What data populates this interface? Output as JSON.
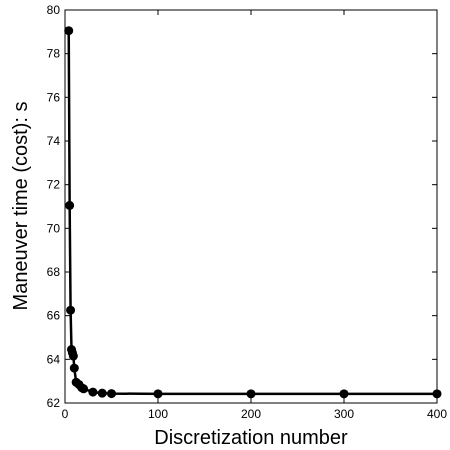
{
  "chart_data": {
    "type": "line",
    "title": "",
    "xlabel": "Discretization number",
    "ylabel": "Maneuver time (cost): s",
    "xlim": [
      0,
      400
    ],
    "ylim": [
      62,
      80
    ],
    "xticks": [
      0,
      100,
      200,
      300,
      400
    ],
    "yticks": [
      62,
      64,
      66,
      68,
      70,
      72,
      74,
      76,
      78,
      80
    ],
    "grid": false,
    "legend": "none",
    "series": [
      {
        "color": "#000000",
        "marker": "filled-circle",
        "x": [
          4,
          5,
          6,
          7,
          8,
          9,
          10,
          12,
          15,
          18,
          20,
          30,
          40,
          50,
          100,
          200,
          300,
          400
        ],
        "y": [
          79.05,
          71.05,
          66.25,
          64.45,
          64.3,
          64.15,
          63.6,
          62.95,
          62.85,
          62.7,
          62.65,
          62.5,
          62.45,
          62.43,
          62.42,
          62.42,
          62.42,
          62.42
        ]
      }
    ]
  }
}
